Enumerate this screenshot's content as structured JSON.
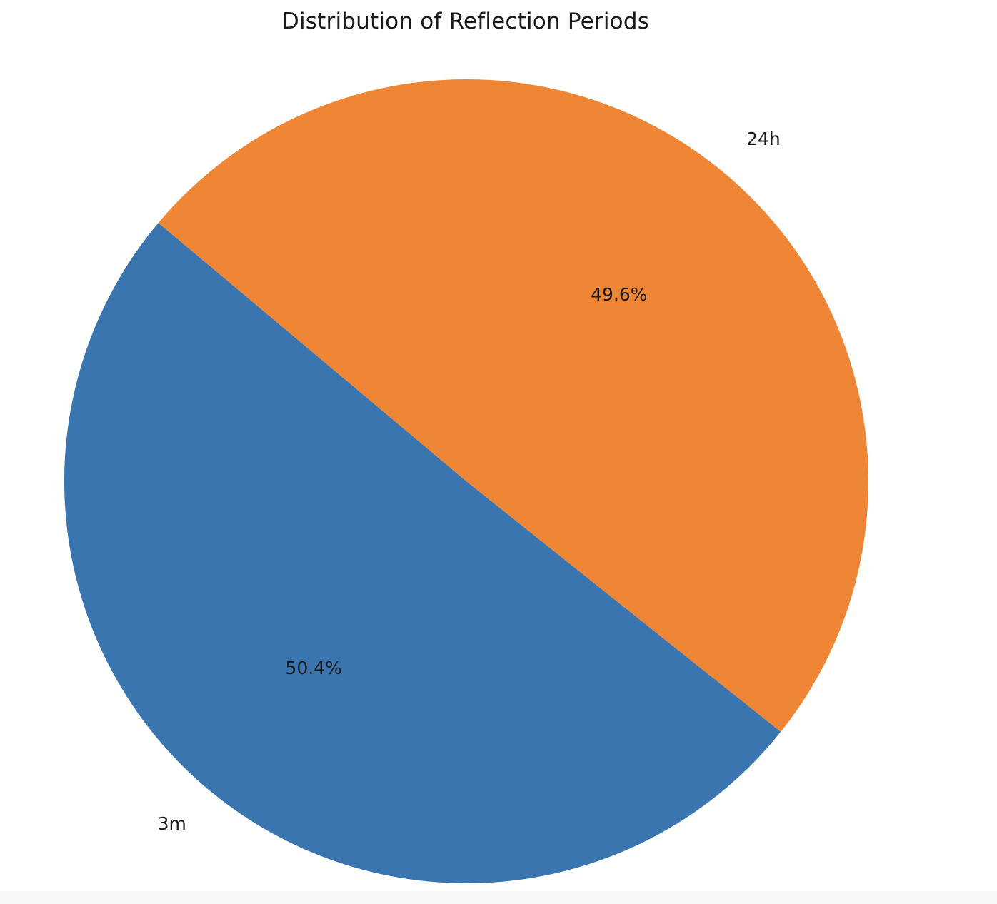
{
  "chart_data": {
    "type": "pie",
    "title": "Distribution of Reflection Periods",
    "slices": [
      {
        "label": "3m",
        "value": 50.4,
        "pct_label": "50.4%",
        "color": "#3b75af"
      },
      {
        "label": "24h",
        "value": 49.6,
        "pct_label": "49.6%",
        "color": "#ee8636"
      }
    ],
    "start_angle_deg": 140,
    "counterclock": true,
    "legend": "none"
  }
}
